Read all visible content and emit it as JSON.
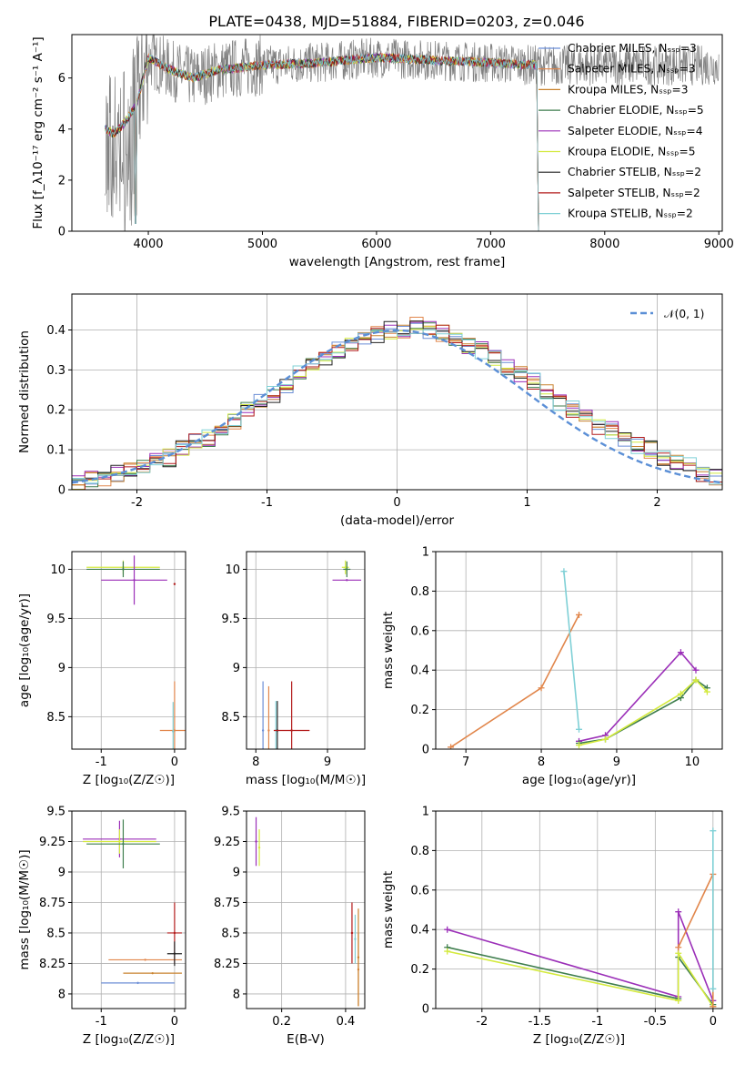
{
  "title": "PLATE=0438, MJD=51884, FIBERID=0203, z=0.046",
  "colors": [
    "#6b8ed6",
    "#e1864b",
    "#c9822e",
    "#3f7e4e",
    "#9b2fb8",
    "#d4ea3e",
    "#222222",
    "#b31b1b",
    "#7fd0d6"
  ],
  "chart_data": [
    {
      "type": "line",
      "xlabel": "wavelength [Angstrom, rest frame]",
      "ylabel": "Flux [f_λ10⁻¹⁷ erg cm⁻² s⁻¹ A⁻¹]",
      "xlim": [
        3330,
        9030
      ],
      "ylim": [
        0,
        7.7
      ],
      "xticks": [
        4000,
        5000,
        6000,
        7000,
        8000,
        9000
      ],
      "yticks": [
        0,
        2,
        4,
        6
      ],
      "grid": false,
      "legend_position": "right",
      "data": {
        "x": [
          3620,
          3700,
          3800,
          3900,
          4000,
          4200,
          4400,
          4600,
          4800,
          5000,
          5500,
          6000,
          6500,
          7000,
          7400
        ],
        "y": [
          4.0,
          3.8,
          4.3,
          5.0,
          6.8,
          6.3,
          6.0,
          6.3,
          6.4,
          6.5,
          6.6,
          6.8,
          6.7,
          6.6,
          6.5
        ]
      },
      "series": [
        {
          "name": "Chabrier MILES, N_SSP=3",
          "color": "#6b8ed6"
        },
        {
          "name": "Salpeter MILES, N_SSP=3",
          "color": "#e1864b"
        },
        {
          "name": "Kroupa MILES, N_SSP=3",
          "color": "#c9822e"
        },
        {
          "name": "Chabrier ELODIE, N_SSP=5",
          "color": "#3f7e4e"
        },
        {
          "name": "Salpeter ELODIE, N_SSP=4",
          "color": "#9b2fb8"
        },
        {
          "name": "Kroupa ELODIE, N_SSP=5",
          "color": "#d4ea3e"
        },
        {
          "name": "Chabrier STELIB, N_SSP=2",
          "color": "#222222"
        },
        {
          "name": "Salpeter STELIB, N_SSP=2",
          "color": "#b31b1b"
        },
        {
          "name": "Kroupa STELIB, N_SSP=2",
          "color": "#7fd0d6"
        }
      ]
    },
    {
      "type": "histogram",
      "xlabel": "(data-model)/error",
      "ylabel": "Normed distribution",
      "xlim": [
        -2.5,
        2.5
      ],
      "ylim": [
        0,
        0.49
      ],
      "xticks": [
        -2,
        -1,
        0,
        1,
        2
      ],
      "yticks": [
        0.0,
        0.1,
        0.2,
        0.3,
        0.4
      ],
      "grid": true,
      "legend_position": "top-right",
      "curve_label": "𝒩(0, 1)",
      "bin_edges": [
        -2.5,
        -2.4,
        -2.3,
        -2.2,
        -2.1,
        -2.0,
        -1.9,
        -1.8,
        -1.7,
        -1.6,
        -1.5,
        -1.4,
        -1.3,
        -1.2,
        -1.1,
        -1.0,
        -0.9,
        -0.8,
        -0.7,
        -0.6,
        -0.5,
        -0.4,
        -0.3,
        -0.2,
        -0.1,
        0.0,
        0.1,
        0.2,
        0.3,
        0.4,
        0.5,
        0.6,
        0.7,
        0.8,
        0.9,
        1.0,
        1.1,
        1.2,
        1.3,
        1.4,
        1.5,
        1.6,
        1.7,
        1.8,
        1.9,
        2.0,
        2.1,
        2.2,
        2.3,
        2.4,
        2.5
      ],
      "base_values": [
        0.02,
        0.03,
        0.03,
        0.04,
        0.05,
        0.06,
        0.07,
        0.08,
        0.1,
        0.12,
        0.13,
        0.15,
        0.17,
        0.2,
        0.22,
        0.24,
        0.26,
        0.29,
        0.31,
        0.33,
        0.35,
        0.37,
        0.38,
        0.39,
        0.4,
        0.4,
        0.41,
        0.4,
        0.39,
        0.38,
        0.36,
        0.35,
        0.33,
        0.31,
        0.29,
        0.27,
        0.24,
        0.22,
        0.2,
        0.18,
        0.16,
        0.15,
        0.13,
        0.11,
        0.1,
        0.08,
        0.07,
        0.06,
        0.04,
        0.03
      ]
    },
    {
      "type": "scatter",
      "xlabel": "Z [log₁₀(Z/Z☉)]",
      "ylabel": "age  [log₁₀(age/yr)]",
      "xlim": [
        -1.4,
        0.15
      ],
      "ylim": [
        8.17,
        10.18
      ],
      "xticks": [
        -1,
        0
      ],
      "yticks": [
        8.5,
        9.0,
        9.5,
        10.0
      ],
      "grid": true,
      "points": [
        {
          "x": -0.7,
          "y": 10.02,
          "xerr": 0.5,
          "yerr": 0.07,
          "color": "#d4ea3e"
        },
        {
          "x": -0.7,
          "y": 10.0,
          "xerr": 0.5,
          "yerr": 0.08,
          "color": "#3f7e4e"
        },
        {
          "x": -0.55,
          "y": 9.89,
          "xerr": 0.45,
          "yerr": 0.25,
          "color": "#9b2fb8"
        },
        {
          "x": 0.0,
          "y": 8.36,
          "xerr": 0.2,
          "yerr": 0.5,
          "color": "#e1864b"
        },
        {
          "x": -0.02,
          "y": 8.35,
          "xerr": 0.0,
          "yerr": 0.3,
          "color": "#7fd0d6"
        },
        {
          "x": 0.0,
          "y": 9.85,
          "xerr": 0.0,
          "yerr": 0.0,
          "color": "#b31b1b"
        }
      ]
    },
    {
      "type": "scatter",
      "xlabel": "mass [log₁₀(M/M☉)]",
      "ylabel": "",
      "xlim": [
        7.87,
        9.52
      ],
      "ylim": [
        8.17,
        10.18
      ],
      "xticks": [
        8,
        9
      ],
      "yticks": [
        8.5,
        9.0,
        9.5,
        10.0
      ],
      "grid": true,
      "points": [
        {
          "x": 9.25,
          "y": 10.02,
          "xerr": 0.05,
          "yerr": 0.07,
          "color": "#d4ea3e"
        },
        {
          "x": 9.27,
          "y": 10.0,
          "xerr": 0.05,
          "yerr": 0.08,
          "color": "#3f7e4e"
        },
        {
          "x": 9.27,
          "y": 9.89,
          "xerr": 0.2,
          "yerr": 0.0,
          "color": "#9b2fb8"
        },
        {
          "x": 8.1,
          "y": 8.36,
          "xerr": 0.0,
          "yerr": 0.5,
          "color": "#6b8ed6"
        },
        {
          "x": 8.18,
          "y": 8.36,
          "xerr": 0.0,
          "yerr": 0.45,
          "color": "#e1864b"
        },
        {
          "x": 8.28,
          "y": 8.36,
          "xerr": 0.0,
          "yerr": 0.3,
          "color": "#7fd0d6"
        },
        {
          "x": 8.3,
          "y": 8.36,
          "xerr": 0.0,
          "yerr": 0.3,
          "color": "#222222"
        },
        {
          "x": 8.5,
          "y": 8.36,
          "xerr": 0.25,
          "yerr": 0.5,
          "color": "#b31b1b"
        }
      ]
    },
    {
      "type": "line",
      "xlabel": "age  [log₁₀(age/yr)]",
      "ylabel": "mass weight",
      "xlim": [
        6.6,
        10.4
      ],
      "ylim": [
        0,
        1.0
      ],
      "xticks": [
        7,
        8,
        9,
        10
      ],
      "yticks": [
        0.0,
        0.2,
        0.4,
        0.6,
        0.8,
        1.0
      ],
      "grid": true,
      "series": [
        {
          "color": "#e1864b",
          "x": [
            6.8,
            8.0,
            8.5
          ],
          "y": [
            0.01,
            0.31,
            0.68
          ]
        },
        {
          "color": "#7fd0d6",
          "x": [
            8.3,
            8.5
          ],
          "y": [
            0.9,
            0.1
          ]
        },
        {
          "color": "#9b2fb8",
          "x": [
            8.5,
            8.85,
            9.85,
            10.05
          ],
          "y": [
            0.04,
            0.07,
            0.49,
            0.4
          ]
        },
        {
          "color": "#3f7e4e",
          "x": [
            8.5,
            8.85,
            9.85,
            10.05,
            10.2
          ],
          "y": [
            0.03,
            0.05,
            0.26,
            0.35,
            0.31
          ]
        },
        {
          "color": "#d4ea3e",
          "x": [
            8.5,
            8.85,
            9.85,
            10.05,
            10.2
          ],
          "y": [
            0.02,
            0.05,
            0.28,
            0.35,
            0.29
          ]
        }
      ]
    },
    {
      "type": "scatter",
      "xlabel": "Z [log₁₀(Z/Z☉)]",
      "ylabel": "mass [log₁₀(M/M☉)]",
      "xlim": [
        -1.4,
        0.15
      ],
      "ylim": [
        7.88,
        9.5
      ],
      "xticks": [
        -1,
        0
      ],
      "yticks": [
        8.0,
        8.25,
        8.5,
        8.75,
        9.0,
        9.25,
        9.5
      ],
      "grid": true,
      "points": [
        {
          "x": -0.75,
          "y": 9.27,
          "xerr": 0.5,
          "yerr": 0.15,
          "color": "#9b2fb8"
        },
        {
          "x": -0.75,
          "y": 9.25,
          "xerr": 0.5,
          "yerr": 0.1,
          "color": "#d4ea3e"
        },
        {
          "x": -0.7,
          "y": 9.23,
          "xerr": 0.5,
          "yerr": 0.2,
          "color": "#3f7e4e"
        },
        {
          "x": -0.4,
          "y": 8.28,
          "xerr": 0.5,
          "yerr": 0.0,
          "color": "#e1864b"
        },
        {
          "x": -0.3,
          "y": 8.17,
          "xerr": 0.4,
          "yerr": 0.0,
          "color": "#c9822e"
        },
        {
          "x": -0.5,
          "y": 8.09,
          "xerr": 0.5,
          "yerr": 0.0,
          "color": "#6b8ed6"
        },
        {
          "x": 0.0,
          "y": 8.5,
          "xerr": 0.1,
          "yerr": 0.25,
          "color": "#b31b1b"
        },
        {
          "x": 0.0,
          "y": 8.33,
          "xerr": 0.1,
          "yerr": 0.1,
          "color": "#222222"
        }
      ]
    },
    {
      "type": "scatter",
      "xlabel": "E(B-V)",
      "ylabel": "",
      "xlim": [
        0.09,
        0.46
      ],
      "ylim": [
        7.88,
        9.5
      ],
      "xticks": [
        0.2,
        0.4
      ],
      "yticks": [
        8.0,
        8.25,
        8.5,
        8.75,
        9.0,
        9.25,
        9.5
      ],
      "grid": true,
      "points": [
        {
          "x": 0.12,
          "y": 9.25,
          "xerr": 0.0,
          "yerr": 0.2,
          "color": "#9b2fb8"
        },
        {
          "x": 0.13,
          "y": 9.2,
          "xerr": 0.0,
          "yerr": 0.15,
          "color": "#d4ea3e"
        },
        {
          "x": 0.42,
          "y": 8.5,
          "xerr": 0.0,
          "yerr": 0.25,
          "color": "#b31b1b"
        },
        {
          "x": 0.43,
          "y": 8.45,
          "xerr": 0.0,
          "yerr": 0.2,
          "color": "#7fd0d6"
        },
        {
          "x": 0.44,
          "y": 8.2,
          "xerr": 0.0,
          "yerr": 0.3,
          "color": "#e1864b"
        },
        {
          "x": 0.44,
          "y": 8.3,
          "xerr": 0.0,
          "yerr": 0.4,
          "color": "#c9822e"
        }
      ]
    },
    {
      "type": "line",
      "xlabel": "Z [log₁₀(Z/Z☉)]",
      "ylabel": "mass weight",
      "xlim": [
        -2.4,
        0.08
      ],
      "ylim": [
        0,
        1.0
      ],
      "xticks": [
        -2.0,
        -1.5,
        -1.0,
        -0.5,
        0.0
      ],
      "yticks": [
        0.0,
        0.2,
        0.4,
        0.6,
        0.8,
        1.0
      ],
      "grid": true,
      "series": [
        {
          "color": "#9b2fb8",
          "x": [
            -2.3,
            -0.3,
            -0.3,
            0.0
          ],
          "y": [
            0.4,
            0.06,
            0.49,
            0.04
          ]
        },
        {
          "color": "#3f7e4e",
          "x": [
            -2.3,
            -0.3,
            -0.3,
            0.0
          ],
          "y": [
            0.31,
            0.05,
            0.26,
            0.02
          ]
        },
        {
          "color": "#d4ea3e",
          "x": [
            -2.3,
            -0.3,
            -0.3,
            0.0
          ],
          "y": [
            0.29,
            0.04,
            0.28,
            0.01
          ]
        },
        {
          "color": "#e1864b",
          "x": [
            -0.3,
            0.0,
            0.0
          ],
          "y": [
            0.31,
            0.68,
            0.01
          ]
        },
        {
          "color": "#7fd0d6",
          "x": [
            0.0,
            0.0
          ],
          "y": [
            0.9,
            0.1
          ]
        }
      ]
    }
  ]
}
